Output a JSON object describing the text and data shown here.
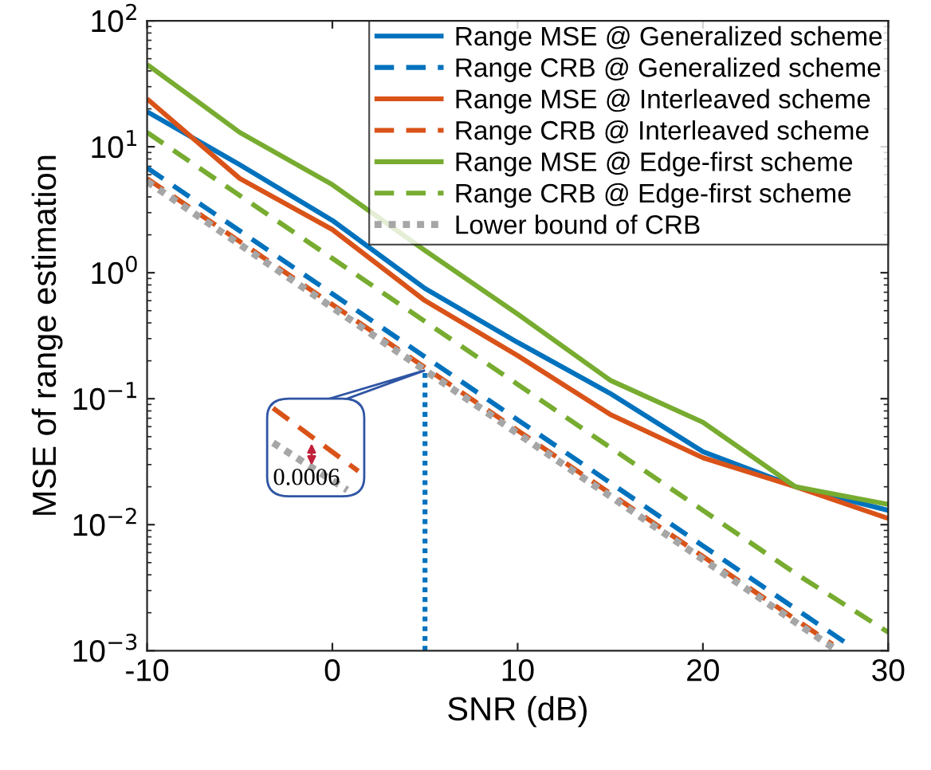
{
  "chart_data": {
    "type": "line",
    "xlabel": "SNR (dB)",
    "ylabel": "MSE of range estimation",
    "log": "y",
    "xlim": [
      -10,
      30
    ],
    "ylim": [
      0.001,
      100
    ],
    "xticks": [
      -10,
      0,
      10,
      20,
      30
    ],
    "yticks": [
      {
        "value": 0.001,
        "label": "10$^{−3}$"
      },
      {
        "value": 0.01,
        "label": "10$^{−2}$"
      },
      {
        "value": 0.1,
        "label": "10$^{−1}$"
      },
      {
        "value": 1,
        "label": "10$^{0}$"
      },
      {
        "value": 10,
        "label": "10$^{1}$"
      },
      {
        "value": 100,
        "label": "10$^{2}$"
      }
    ],
    "grid": false,
    "legend": "top right",
    "marker": "none",
    "series": [
      {
        "name": "Range MSE @ Generalized scheme",
        "color": "#0072bd",
        "line_style": "solid",
        "x": [
          -10,
          -5,
          0,
          5,
          10,
          15,
          20,
          25,
          30
        ],
        "values": [
          19,
          7.2,
          2.6,
          0.75,
          0.28,
          0.11,
          0.038,
          0.02,
          0.013
        ]
      },
      {
        "name": "Range CRB @ Generalized scheme",
        "color": "#0072bd",
        "line_style": "dashed",
        "x": [
          -10,
          -5,
          0,
          5,
          10,
          15,
          20,
          25,
          28
        ],
        "values": [
          6.8,
          2.15,
          0.68,
          0.215,
          0.068,
          0.0215,
          0.0068,
          0.00215,
          0.00108
        ]
      },
      {
        "name": "Range MSE @ Interleaved scheme",
        "color": "#d95319",
        "line_style": "solid",
        "x": [
          -10,
          -5,
          0,
          5,
          10,
          15,
          20,
          25,
          30
        ],
        "values": [
          24,
          5.6,
          2.2,
          0.6,
          0.22,
          0.075,
          0.034,
          0.02,
          0.0112
        ]
      },
      {
        "name": "Range CRB @ Interleaved scheme",
        "color": "#d95319",
        "line_style": "dashed",
        "x": [
          -10,
          -5,
          0,
          5,
          10,
          15,
          20,
          25,
          27
        ],
        "values": [
          5.6,
          1.77,
          0.56,
          0.177,
          0.056,
          0.0177,
          0.0056,
          0.00177,
          0.00112
        ]
      },
      {
        "name": "Range MSE @ Edge-first scheme",
        "color": "#77ac30",
        "line_style": "solid",
        "x": [
          -10,
          -5,
          0,
          5,
          10,
          15,
          20,
          25,
          30
        ],
        "values": [
          45,
          13,
          5,
          1.5,
          0.47,
          0.14,
          0.065,
          0.02,
          0.0145
        ]
      },
      {
        "name": "Range CRB @ Edge-first scheme",
        "color": "#77ac30",
        "line_style": "dashed",
        "x": [
          -10,
          -5,
          0,
          5,
          10,
          15,
          20,
          25,
          30
        ],
        "values": [
          13,
          4.1,
          1.3,
          0.41,
          0.13,
          0.041,
          0.013,
          0.0041,
          0.0014
        ]
      },
      {
        "name": "Lower bound of CRB",
        "color": "#a6a6a6",
        "line_style": "dotted",
        "x": [
          -10,
          -5,
          0,
          5,
          10,
          15,
          20,
          25,
          27
        ],
        "values": [
          5.3,
          1.68,
          0.53,
          0.168,
          0.053,
          0.0168,
          0.0053,
          0.00168,
          0.00106
        ]
      }
    ],
    "ref_lines": [
      {
        "axis": "x",
        "value": 5,
        "color": "#0072bd",
        "line_style": "dotted"
      }
    ],
    "annotations": [
      "0.0006"
    ]
  }
}
